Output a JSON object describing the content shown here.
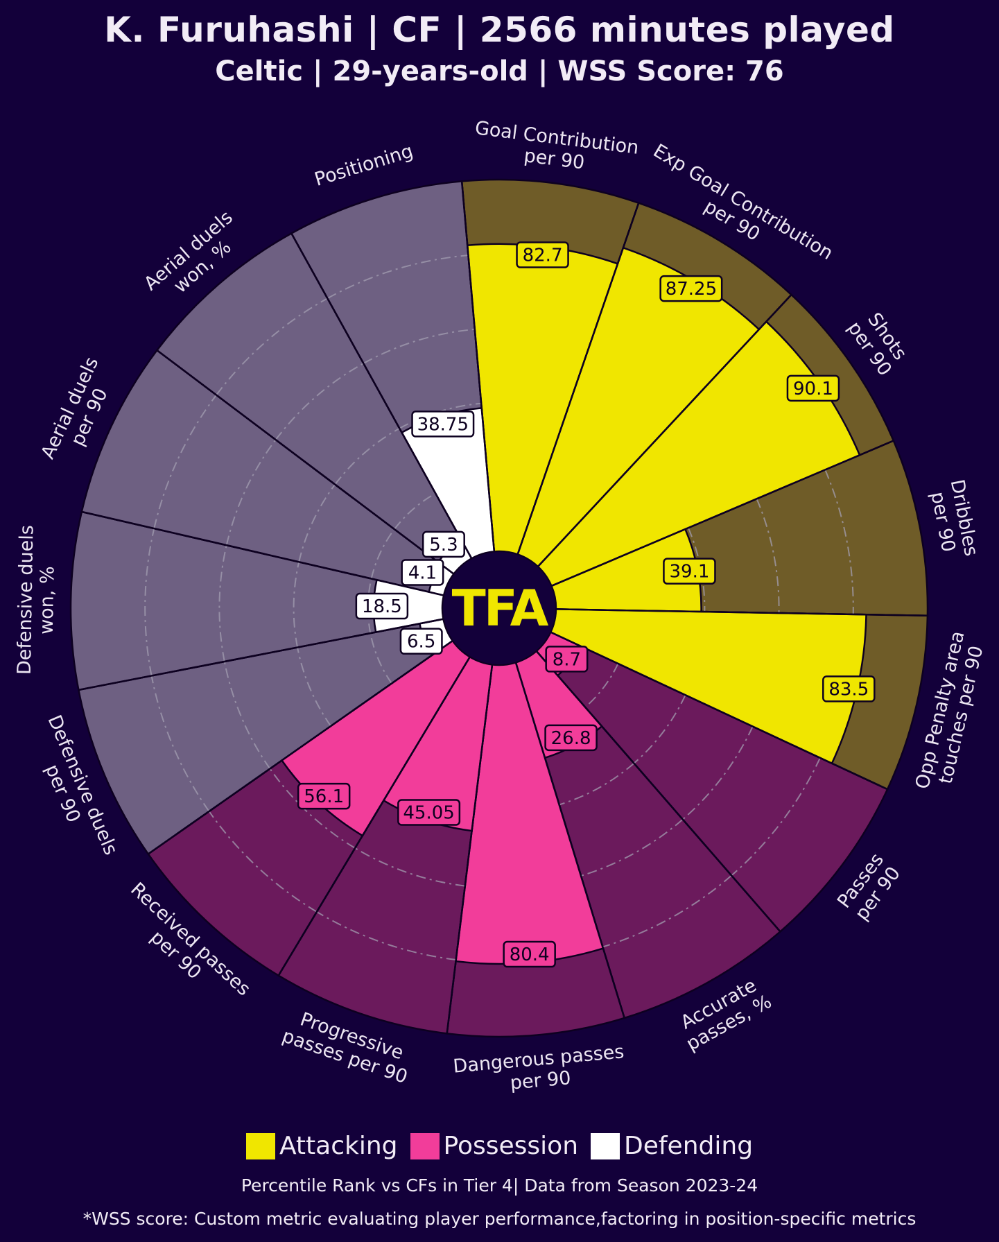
{
  "header": {
    "title": "K. Furuhashi | CF | 2566 minutes played",
    "subtitle": "Celtic | 29-years-old | WSS Score: 76"
  },
  "logo_text": "TFA",
  "colors": {
    "background": "#13003a",
    "attacking": "#f0e600",
    "attacking_bg": "#6f5c28",
    "possession": "#f23d9a",
    "possession_bg": "#6b1a5c",
    "defending": "#ffffff",
    "defending_bg": "#6e6082",
    "logo_yellow": "#f0e600"
  },
  "chart_data": {
    "type": "polar-bar",
    "title": "K. Furuhashi | CF | 2566 minutes played",
    "rlim": [
      0,
      100
    ],
    "gridlines": [
      20,
      40,
      60,
      80
    ],
    "metrics": [
      {
        "label": "Goal Contribution\nper 90",
        "value": 82.7,
        "label_text": "82.7",
        "group": "Attacking"
      },
      {
        "label": "Exp Goal Contribution\nper 90",
        "value": 87.25,
        "label_text": "87.25",
        "group": "Attacking"
      },
      {
        "label": "Shots\nper 90",
        "value": 90.1,
        "label_text": "90.1",
        "group": "Attacking"
      },
      {
        "label": "Dribbles\nper 90",
        "value": 39.1,
        "label_text": "39.1",
        "group": "Attacking"
      },
      {
        "label": "Opp Penalty area\ntouches per 90",
        "value": 83.5,
        "label_text": "83.5",
        "group": "Attacking"
      },
      {
        "label": "Passes\nper 90",
        "value": 8.7,
        "label_text": "8.7",
        "group": "Possession"
      },
      {
        "label": "Accurate\npasses, %",
        "value": 26.8,
        "label_text": "26.8",
        "group": "Possession"
      },
      {
        "label": "Dangerous passes\nper 90",
        "value": 80.4,
        "label_text": "80.4",
        "group": "Possession"
      },
      {
        "label": "Progressive\npasses per 90",
        "value": 45.05,
        "label_text": "45.05",
        "group": "Possession"
      },
      {
        "label": "Received passes\nper 90",
        "value": 56.1,
        "label_text": "56.1",
        "group": "Possession"
      },
      {
        "label": "Defensive duels\nper 90",
        "value": 6.5,
        "label_text": "6.5",
        "group": "Defending"
      },
      {
        "label": "Defensive duels\nwon, %",
        "value": 18.5,
        "label_text": "18.5",
        "group": "Defending"
      },
      {
        "label": "Aerial duels\nper 90",
        "value": 4.1,
        "label_text": "4.1",
        "group": "Defending"
      },
      {
        "label": "Aerial duels\nwon, %",
        "value": 5.3,
        "label_text": "5.3",
        "group": "Defending"
      },
      {
        "label": "Positioning",
        "value": 38.75,
        "label_text": "38.75",
        "group": "Defending"
      }
    ],
    "legend": [
      "Attacking",
      "Possession",
      "Defending"
    ]
  },
  "legend": {
    "attacking": "Attacking",
    "possession": "Possession",
    "defending": "Defending"
  },
  "footer": {
    "note1": "Percentile Rank vs CFs in Tier 4| Data from Season 2023-24",
    "note2": "*WSS score: Custom metric evaluating player performance,factoring in position-specific metrics"
  }
}
